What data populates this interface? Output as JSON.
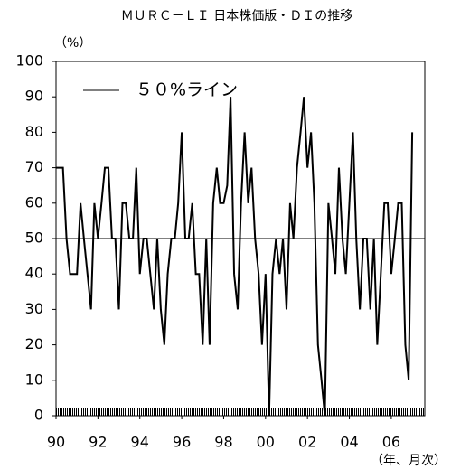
{
  "chart_data": {
    "type": "line",
    "title": "ＭＵＲＣ－ＬＩ 日本株価版・ＤＩの推移",
    "y_label": "（%）",
    "x_label": "（年、月次）",
    "x": [
      1990,
      1990.17,
      1990.33,
      1990.5,
      1990.67,
      1990.83,
      1991,
      1991.17,
      1991.33,
      1991.5,
      1991.67,
      1991.83,
      1992,
      1992.17,
      1992.33,
      1992.5,
      1992.67,
      1992.83,
      1993,
      1993.17,
      1993.33,
      1993.5,
      1993.67,
      1993.83,
      1994,
      1994.17,
      1994.33,
      1994.5,
      1994.67,
      1994.83,
      1995,
      1995.17,
      1995.33,
      1995.5,
      1995.67,
      1995.83,
      1996,
      1996.17,
      1996.33,
      1996.5,
      1996.67,
      1996.83,
      1997,
      1997.17,
      1997.33,
      1997.5,
      1997.67,
      1997.83,
      1998,
      1998.17,
      1998.33,
      1998.5,
      1998.67,
      1998.83,
      1999,
      1999.17,
      1999.33,
      1999.5,
      1999.67,
      1999.83,
      2000,
      2000.17,
      2000.33,
      2000.5,
      2000.67,
      2000.83,
      2001,
      2001.17,
      2001.33,
      2001.5,
      2001.67,
      2001.83,
      2002,
      2002.17,
      2002.33,
      2002.5,
      2002.67,
      2002.83,
      2003,
      2003.17,
      2003.33,
      2003.5,
      2003.67,
      2003.83,
      2004,
      2004.17,
      2004.33,
      2004.5,
      2004.67,
      2004.83,
      2005,
      2005.17,
      2005.33,
      2005.5,
      2005.67,
      2005.83,
      2006,
      2006.17,
      2006.33,
      2006.5,
      2006.67,
      2006.83,
      2007
    ],
    "series": [
      {
        "name": "ＤＩ",
        "color": "#000000",
        "values": [
          70,
          70,
          70,
          50,
          40,
          40,
          40,
          60,
          50,
          40,
          30,
          60,
          50,
          60,
          70,
          70,
          50,
          50,
          30,
          60,
          60,
          50,
          50,
          70,
          40,
          50,
          50,
          40,
          30,
          50,
          30,
          20,
          40,
          50,
          50,
          60,
          80,
          50,
          50,
          60,
          40,
          40,
          20,
          50,
          20,
          60,
          70,
          60,
          60,
          65,
          90,
          40,
          30,
          60,
          80,
          60,
          70,
          50,
          40,
          20,
          40,
          0,
          40,
          50,
          40,
          50,
          30,
          60,
          50,
          70,
          80,
          90,
          70,
          80,
          60,
          20,
          10,
          0,
          60,
          50,
          40,
          70,
          50,
          40,
          60,
          80,
          50,
          30,
          50,
          50,
          30,
          50,
          20,
          40,
          60,
          60,
          40,
          50,
          60,
          60,
          20,
          10,
          80
        ]
      }
    ],
    "reference_line": {
      "name": "５０%ライン",
      "value": 50,
      "color": "#000000"
    },
    "xlim": [
      1990,
      2007.6
    ],
    "xticks": [
      {
        "value": 1990,
        "label": "90"
      },
      {
        "value": 1992,
        "label": "92"
      },
      {
        "value": 1994,
        "label": "94"
      },
      {
        "value": 1996,
        "label": "96"
      },
      {
        "value": 1998,
        "label": "98"
      },
      {
        "value": 2000,
        "label": "00"
      },
      {
        "value": 2002,
        "label": "02"
      },
      {
        "value": 2004,
        "label": "04"
      },
      {
        "value": 2006,
        "label": "06"
      }
    ],
    "ylim": [
      0,
      100
    ],
    "yticks": [
      0,
      10,
      20,
      30,
      40,
      50,
      60,
      70,
      80,
      90,
      100
    ],
    "grid": false,
    "legend": "top-left"
  }
}
